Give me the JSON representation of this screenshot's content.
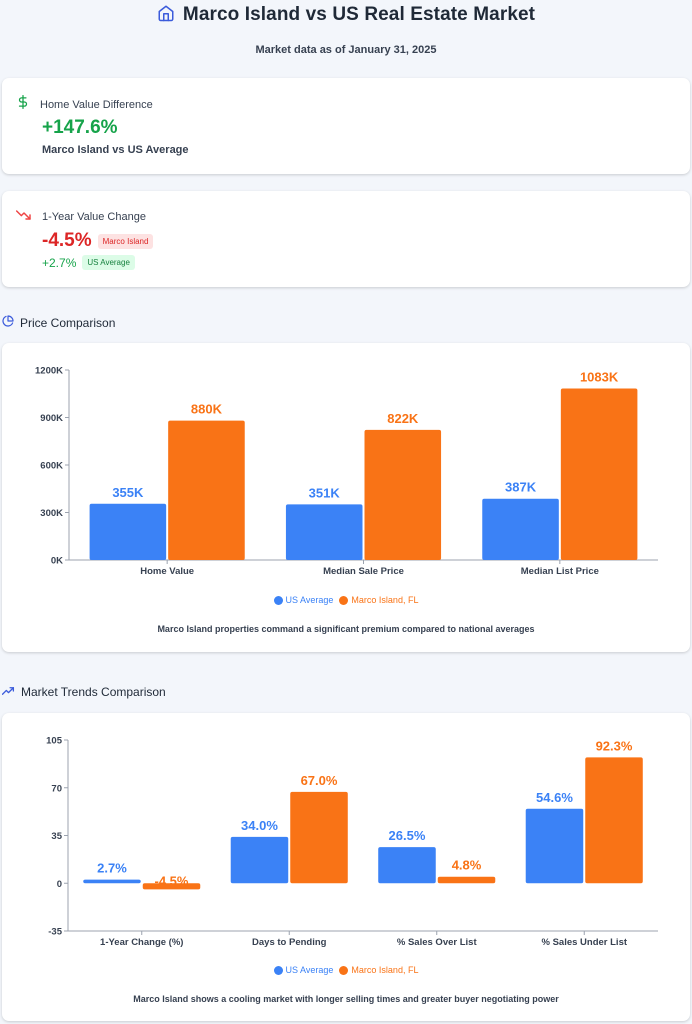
{
  "header": {
    "title": "Marco Island vs US Real Estate Market",
    "subtitle": "Market data as of January 31, 2025",
    "icon": "home-icon"
  },
  "stats": {
    "home_value": {
      "icon": "dollar-icon",
      "label": "Home Value Difference",
      "value": "+147.6%",
      "sub": "Marco Island vs US Average"
    },
    "year_change": {
      "icon": "trending-down-icon",
      "label": "1-Year Value Change",
      "marco_value": "-4.5%",
      "marco_badge": "Marco Island",
      "us_value": "+2.7%",
      "us_badge": "US Average"
    }
  },
  "sections": {
    "price": {
      "icon": "pie-chart-icon",
      "title": "Price Comparison",
      "caption": "Marco Island properties command a significant premium compared to national averages"
    },
    "trends": {
      "icon": "trending-up-icon",
      "title": "Market Trends Comparison",
      "caption": "Marco Island shows a cooling market with longer selling times and greater buyer negotiating power"
    }
  },
  "colors": {
    "us": "#3b82f6",
    "marco": "#f97316",
    "green": "#16a34a",
    "red": "#dc2626"
  },
  "chart_data": [
    {
      "type": "bar",
      "title": "Price Comparison",
      "categories": [
        "Home Value",
        "Median Sale Price",
        "Median List Price"
      ],
      "series": [
        {
          "name": "US Average",
          "values": [
            355,
            351,
            387
          ],
          "labels": [
            "355K",
            "351K",
            "387K"
          ]
        },
        {
          "name": "Marco Island, FL",
          "values": [
            880,
            822,
            1083
          ],
          "labels": [
            "880K",
            "822K",
            "1083K"
          ]
        }
      ],
      "ylim": [
        0,
        1200
      ],
      "yticks": [
        0,
        300,
        600,
        900,
        1200
      ],
      "ytick_labels": [
        "0K",
        "300K",
        "600K",
        "900K",
        "1200K"
      ],
      "xlabel": "",
      "ylabel": "",
      "legend": "bottom",
      "grid": false
    },
    {
      "type": "bar",
      "title": "Market Trends Comparison",
      "categories": [
        "1-Year Change (%)",
        "Days to Pending",
        "% Sales Over List",
        "% Sales Under List"
      ],
      "series": [
        {
          "name": "US Average",
          "values": [
            2.7,
            34.0,
            26.5,
            54.6
          ],
          "labels": [
            "2.7%",
            "34.0%",
            "26.5%",
            "54.6%"
          ]
        },
        {
          "name": "Marco Island, FL",
          "values": [
            -4.5,
            67.0,
            4.8,
            92.3
          ],
          "labels": [
            "-4.5%",
            "67.0%",
            "4.8%",
            "92.3%"
          ]
        }
      ],
      "ylim": [
        -35,
        105
      ],
      "yticks": [
        -35,
        0,
        35,
        70,
        105
      ],
      "ytick_labels": [
        "-35",
        "0",
        "35",
        "70",
        "105"
      ],
      "xlabel": "",
      "ylabel": "",
      "legend": "bottom",
      "grid": false
    }
  ]
}
